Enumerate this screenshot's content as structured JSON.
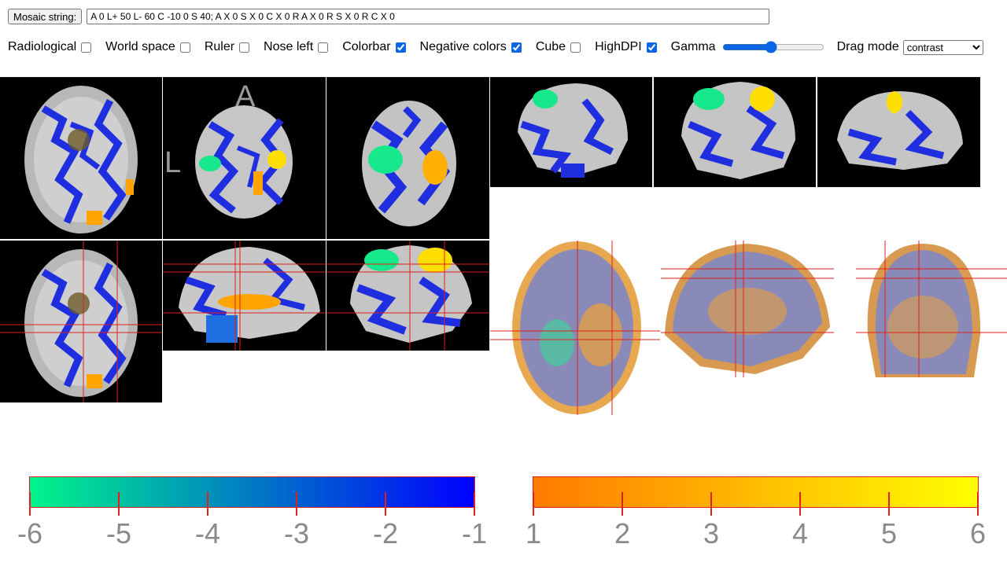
{
  "controls": {
    "mosaic_button": "Mosaic string:",
    "mosaic_value": "A 0 L+ 50 L- 60 C -10 0 S 40; A X 0 S X 0 C X 0 R A X 0 R S X 0 R C X 0",
    "options": [
      {
        "label": "Radiological",
        "checked": false
      },
      {
        "label": "World space",
        "checked": false
      },
      {
        "label": "Ruler",
        "checked": false
      },
      {
        "label": "Nose left",
        "checked": false
      },
      {
        "label": "Colorbar",
        "checked": true
      },
      {
        "label": "Negative colors",
        "checked": true
      },
      {
        "label": "Cube",
        "checked": false
      },
      {
        "label": "HighDPI",
        "checked": true
      }
    ],
    "gamma_label": "Gamma",
    "gamma_value": 0.48,
    "drag_mode_label": "Drag mode",
    "drag_mode_value": "contrast"
  },
  "viewer": {
    "orientation_labels": {
      "anterior": "A",
      "left": "L"
    }
  },
  "colorbars": {
    "negative": {
      "min": -6,
      "max": -1,
      "ticks": [
        "-6",
        "-5",
        "-4",
        "-3",
        "-2",
        "-1"
      ],
      "colors": [
        "#00f58a",
        "#0000ff"
      ]
    },
    "positive": {
      "min": 1,
      "max": 6,
      "ticks": [
        "1",
        "2",
        "3",
        "4",
        "5",
        "6"
      ],
      "colors": [
        "#ff7a00",
        "#ffff00"
      ]
    }
  },
  "colors": {
    "crosshair": "#e0201c",
    "positive_overlay": "#ffa400",
    "negative_overlay": "#0033ff"
  }
}
